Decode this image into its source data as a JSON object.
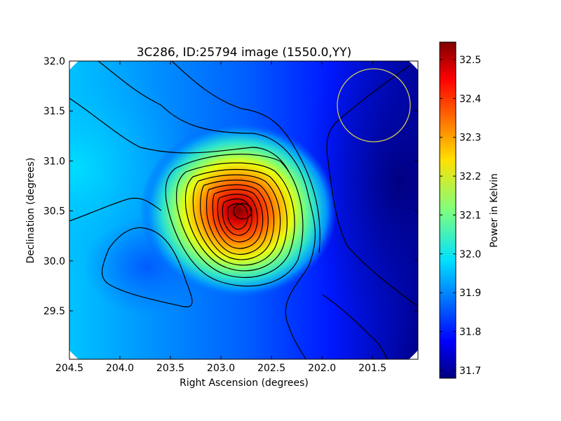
{
  "chart_data": {
    "type": "heatmap",
    "title": "3C286, ID:25794 image (1550.0,YY)",
    "xlabel": "Right Ascension (degrees)",
    "ylabel": "Declination (degrees)",
    "colorbar_label": "Power in Kelvin",
    "xlim": [
      204.5,
      201.05
    ],
    "ylim": [
      29.5,
      32.0
    ],
    "x_ticks": [
      204.5,
      204.0,
      203.5,
      203.0,
      202.5,
      202.0,
      201.5
    ],
    "x_tick_labels": [
      "204.5",
      "204.0",
      "203.5",
      "203.0",
      "202.5",
      "202.0",
      "201.5"
    ],
    "y_ticks": [
      29.5,
      30.0,
      30.5,
      31.0,
      31.5,
      32.0
    ],
    "y_tick_labels": [
      "29.5",
      "30.0",
      "30.5",
      "31.0",
      "31.5",
      "32.0"
    ],
    "colorbar_range": [
      31.68,
      32.545
    ],
    "colorbar_ticks": [
      31.7,
      31.8,
      31.9,
      32.0,
      32.1,
      32.2,
      32.3,
      32.4,
      32.5
    ],
    "colorbar_tick_labels": [
      "31.7",
      "31.8",
      "31.9",
      "32.0",
      "32.1",
      "32.2",
      "32.3",
      "32.4",
      "32.5"
    ],
    "colormap": "jet",
    "peak": {
      "ra": 202.8,
      "dec": 30.5,
      "value": 32.54
    },
    "circle": {
      "ra": 201.47,
      "dec": 31.56,
      "radius_deg": 0.36,
      "color": "#c8c850"
    },
    "contour_color": "#000000",
    "grid": false
  }
}
